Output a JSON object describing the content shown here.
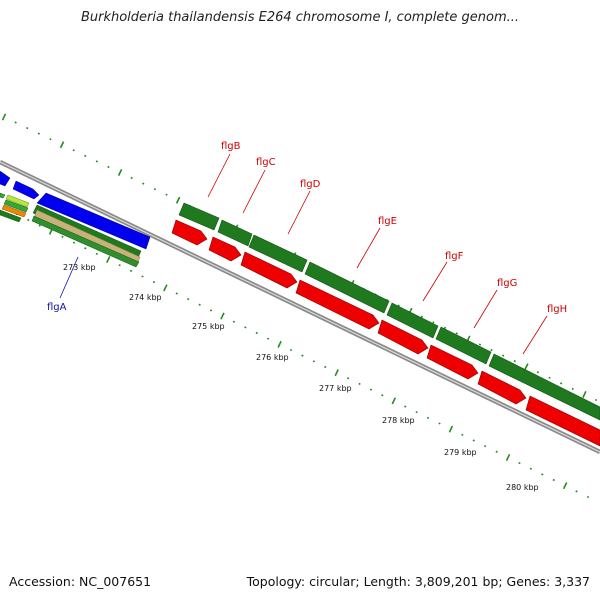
{
  "title": "Burkholderia thailandensis E264 chromosome I, complete genom...",
  "footer": {
    "accession": "Accession: NC_007651",
    "stats": "Topology: circular; Length: 3,809,201 bp; Genes: 3,337"
  },
  "colors": {
    "forward_cds": "#228B22",
    "reverse_cds": "#EE0000",
    "blue_feature": "#0000EE",
    "tick": "#228B22",
    "backbone": "#888888",
    "gene_label_red": "#CC0000",
    "gene_label_blue": "#1111AA"
  },
  "gene_labels": [
    {
      "name": "flgA",
      "color": "blue"
    },
    {
      "name": "flgB",
      "color": "red"
    },
    {
      "name": "flgC",
      "color": "red"
    },
    {
      "name": "flgD",
      "color": "red"
    },
    {
      "name": "flgE",
      "color": "red"
    },
    {
      "name": "flgF",
      "color": "red"
    },
    {
      "name": "flgG",
      "color": "red"
    },
    {
      "name": "flgH",
      "color": "red"
    }
  ],
  "scale_labels": [
    "273 kbp",
    "274 kbp",
    "275 kbp",
    "276 kbp",
    "277 kbp",
    "278 kbp",
    "279 kbp",
    "280 kbp"
  ]
}
